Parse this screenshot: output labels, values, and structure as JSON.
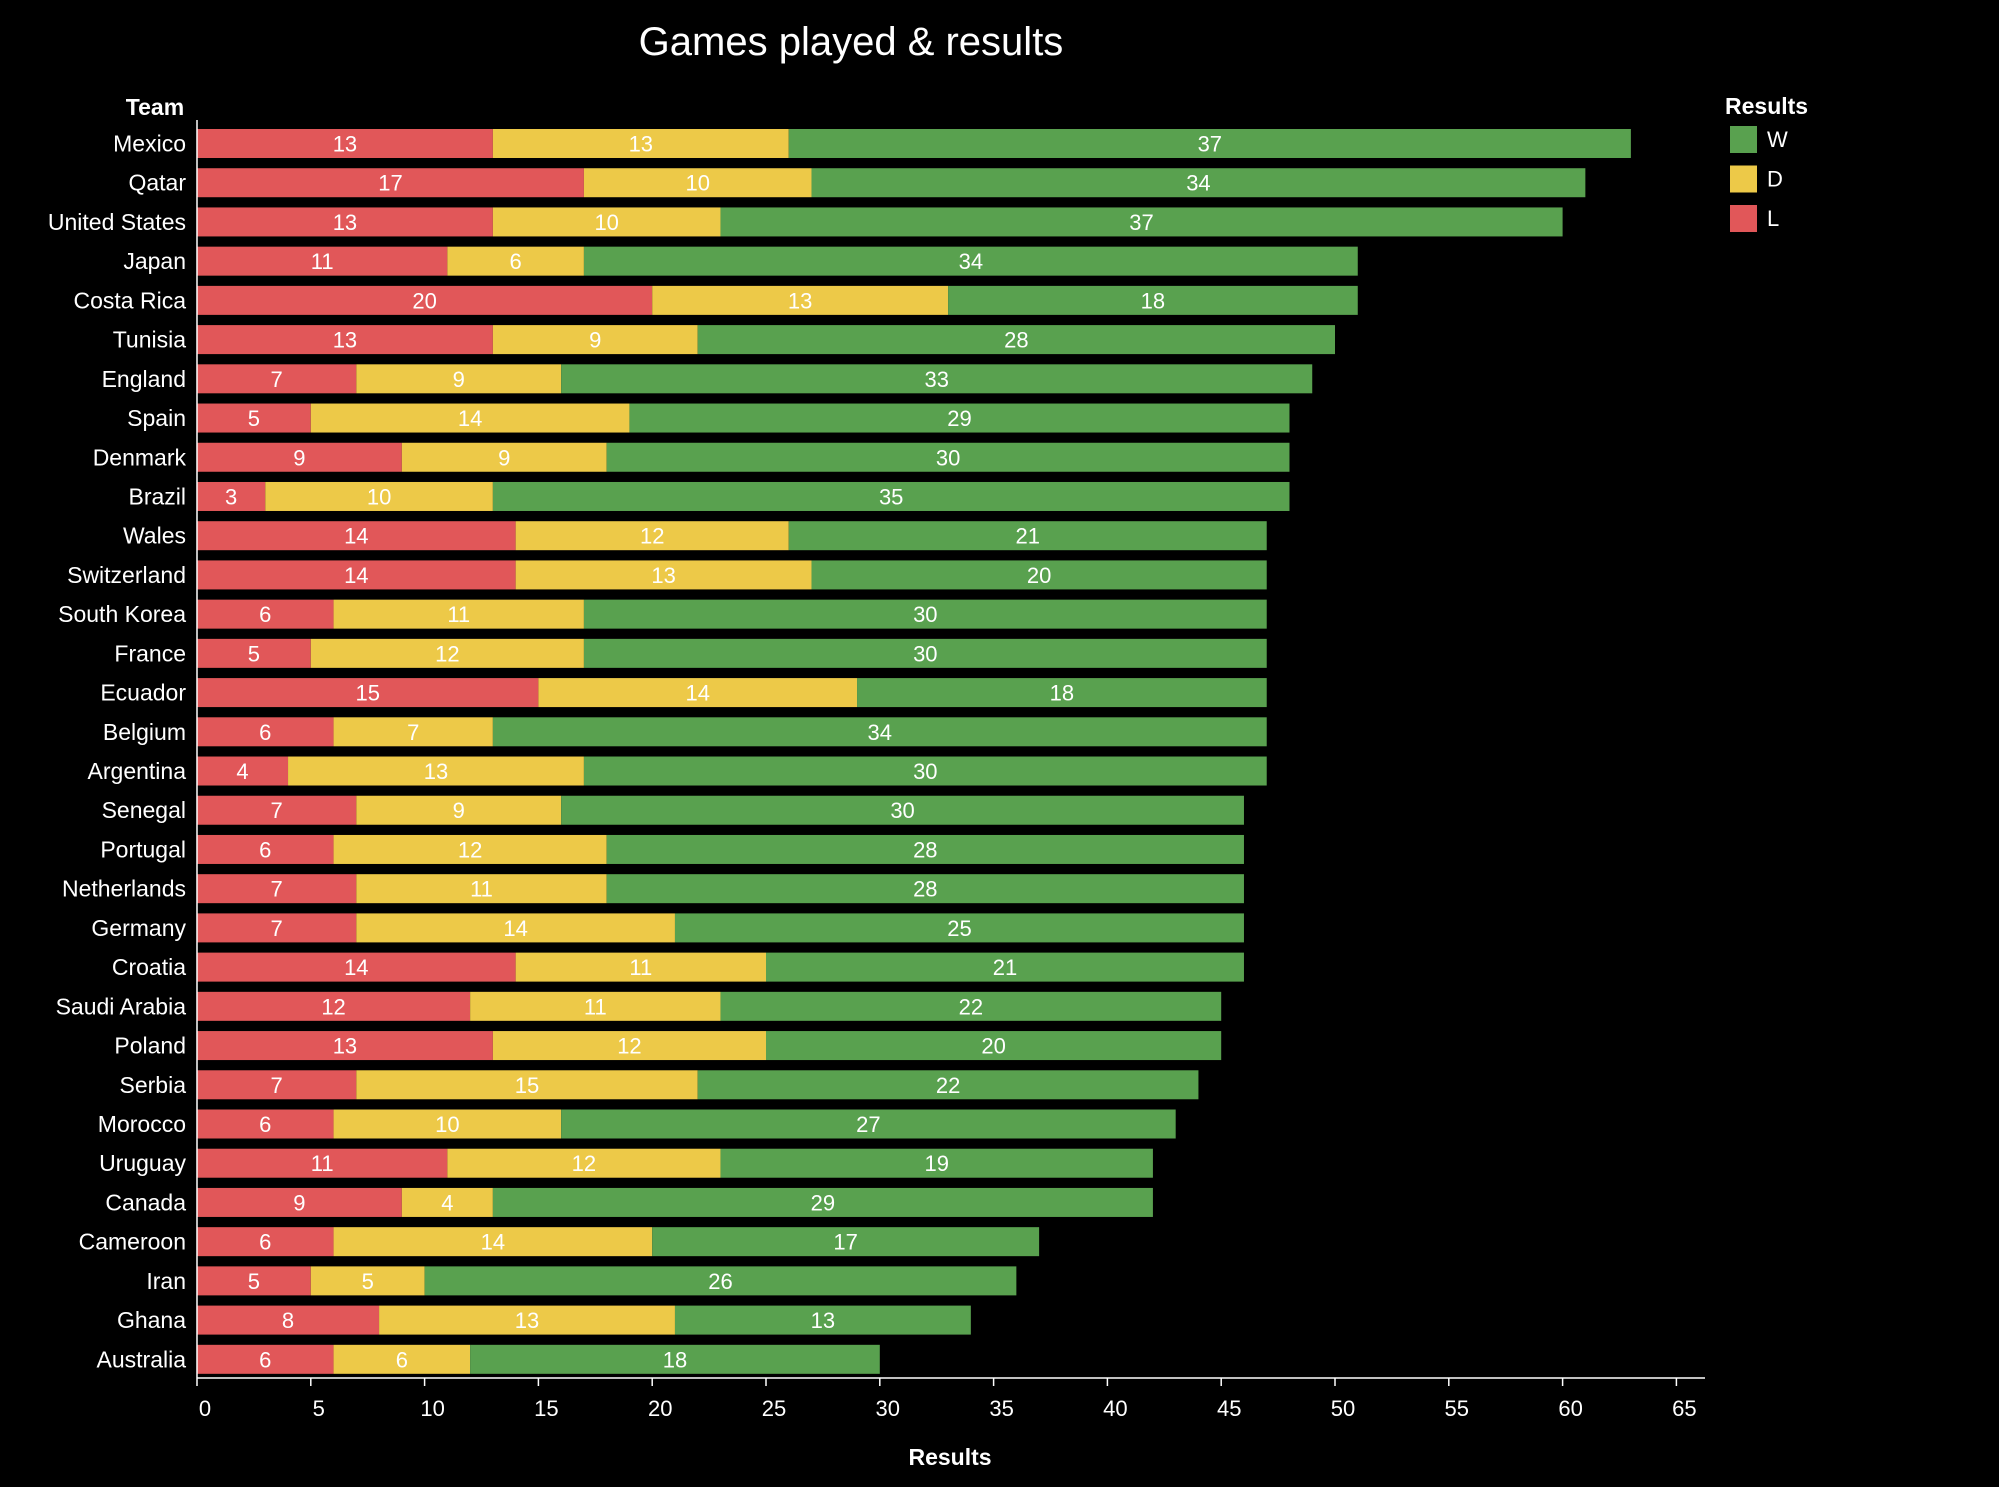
{
  "chart_data": {
    "type": "bar",
    "orientation": "horizontal",
    "stacked": true,
    "title": "Games played & results",
    "xlabel": "Results",
    "ylabel": "Team",
    "xlim": [
      0,
      66
    ],
    "xticks": [
      0,
      5,
      10,
      15,
      20,
      25,
      30,
      35,
      40,
      45,
      50,
      55,
      60,
      65
    ],
    "grid": false,
    "legend": {
      "title": "Results",
      "position": "top-right",
      "entries": [
        {
          "key": "W",
          "label": "W",
          "color": "#59a14f"
        },
        {
          "key": "D",
          "label": "D",
          "color": "#edc948"
        },
        {
          "key": "L",
          "label": "L",
          "color": "#e15759"
        }
      ]
    },
    "stack_order": [
      "L",
      "D",
      "W"
    ],
    "categories": [
      "Mexico",
      "Qatar",
      "United States",
      "Japan",
      "Costa Rica",
      "Tunisia",
      "England",
      "Spain",
      "Denmark",
      "Brazil",
      "Wales",
      "Switzerland",
      "South Korea",
      "France",
      "Ecuador",
      "Belgium",
      "Argentina",
      "Senegal",
      "Portugal",
      "Netherlands",
      "Germany",
      "Croatia",
      "Saudi Arabia",
      "Poland",
      "Serbia",
      "Morocco",
      "Uruguay",
      "Canada",
      "Cameroon",
      "Iran",
      "Ghana",
      "Australia"
    ],
    "series": [
      {
        "name": "L",
        "color": "#e15759",
        "values": [
          13,
          17,
          13,
          11,
          20,
          13,
          7,
          5,
          9,
          3,
          14,
          14,
          6,
          5,
          15,
          6,
          4,
          7,
          6,
          7,
          7,
          14,
          12,
          13,
          7,
          6,
          11,
          9,
          6,
          5,
          8,
          6
        ]
      },
      {
        "name": "D",
        "color": "#edc948",
        "values": [
          13,
          10,
          10,
          6,
          13,
          9,
          9,
          14,
          9,
          10,
          12,
          13,
          11,
          12,
          14,
          7,
          13,
          9,
          12,
          11,
          14,
          11,
          11,
          12,
          15,
          10,
          12,
          4,
          14,
          5,
          13,
          6
        ]
      },
      {
        "name": "W",
        "color": "#59a14f",
        "values": [
          37,
          34,
          37,
          34,
          18,
          28,
          33,
          29,
          30,
          35,
          21,
          20,
          30,
          30,
          18,
          34,
          30,
          30,
          28,
          28,
          25,
          21,
          22,
          20,
          22,
          27,
          19,
          29,
          17,
          26,
          13,
          18
        ]
      }
    ]
  }
}
